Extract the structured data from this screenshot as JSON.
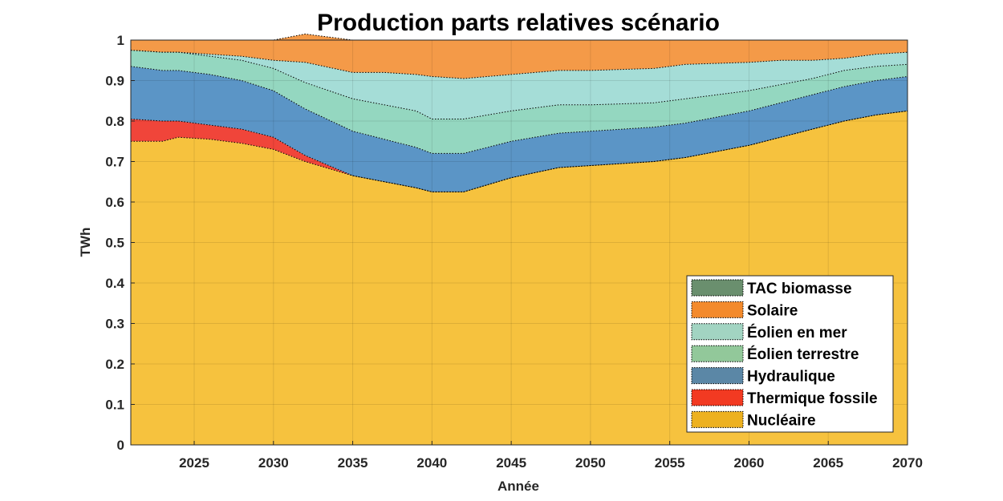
{
  "chart_data": {
    "type": "area",
    "stacked": true,
    "title": "Production parts relatives scénario",
    "xlabel": "Année",
    "ylabel": "TWh",
    "xlim": [
      2021,
      2070
    ],
    "ylim": [
      0,
      1
    ],
    "xticks": [
      2025,
      2030,
      2035,
      2040,
      2045,
      2050,
      2055,
      2060,
      2065,
      2070
    ],
    "yticks": [
      0,
      0.1,
      0.2,
      0.3,
      0.4,
      0.5,
      0.6,
      0.7,
      0.8,
      0.9,
      1
    ],
    "ytick_labels": [
      "0",
      "0.1",
      "0.2",
      "0.3",
      "0.4",
      "0.5",
      "0.6",
      "0.7",
      "0.8",
      "0.9",
      "1"
    ],
    "grid": true,
    "legend_position": "bottom-right",
    "x": [
      2021,
      2023,
      2024,
      2026,
      2028,
      2030,
      2032,
      2035,
      2037,
      2039,
      2040,
      2042,
      2045,
      2048,
      2050,
      2054,
      2056,
      2060,
      2062,
      2064,
      2066,
      2068,
      2070
    ],
    "series": [
      {
        "name": "Nucléaire",
        "color": "#f6c23e",
        "legend_color": "#edb120",
        "values": [
          0.75,
          0.75,
          0.76,
          0.755,
          0.745,
          0.73,
          0.7,
          0.665,
          0.65,
          0.635,
          0.625,
          0.625,
          0.66,
          0.685,
          0.69,
          0.7,
          0.71,
          0.74,
          0.76,
          0.78,
          0.8,
          0.815,
          0.825
        ]
      },
      {
        "name": "Thermique fossile",
        "color": "#f0453a",
        "legend_color": "#f23a22",
        "values": [
          0.055,
          0.05,
          0.04,
          0.035,
          0.035,
          0.03,
          0.015,
          0.0,
          0.0,
          0.0,
          0.0,
          0.0,
          0.0,
          0.0,
          0.0,
          0.0,
          0.0,
          0.0,
          0.0,
          0.0,
          0.0,
          0.0,
          0.0
        ]
      },
      {
        "name": "Hydraulique",
        "color": "#5b95c6",
        "legend_color": "#5b87a6",
        "values": [
          0.13,
          0.125,
          0.125,
          0.125,
          0.12,
          0.115,
          0.115,
          0.11,
          0.105,
          0.1,
          0.095,
          0.095,
          0.09,
          0.085,
          0.085,
          0.085,
          0.085,
          0.085,
          0.085,
          0.085,
          0.085,
          0.085,
          0.085
        ]
      },
      {
        "name": "Éolien terrestre",
        "color": "#94d7c0",
        "legend_color": "#92c89a",
        "values": [
          0.04,
          0.045,
          0.045,
          0.045,
          0.05,
          0.055,
          0.065,
          0.08,
          0.085,
          0.09,
          0.085,
          0.085,
          0.075,
          0.07,
          0.065,
          0.06,
          0.06,
          0.05,
          0.045,
          0.04,
          0.04,
          0.035,
          0.03
        ]
      },
      {
        "name": "Éolien en mer",
        "color": "#a5ddd7",
        "legend_color": "#a2d4c2",
        "values": [
          0.0,
          0.0,
          0.0,
          0.005,
          0.01,
          0.02,
          0.05,
          0.065,
          0.08,
          0.09,
          0.105,
          0.1,
          0.09,
          0.085,
          0.085,
          0.085,
          0.085,
          0.07,
          0.06,
          0.045,
          0.03,
          0.03,
          0.03
        ]
      },
      {
        "name": "Solaire",
        "color": "#f49a48",
        "legend_color": "#f38a2c",
        "values": [
          0.025,
          0.03,
          0.03,
          0.035,
          0.04,
          0.05,
          0.07,
          0.08,
          0.08,
          0.085,
          0.09,
          0.095,
          0.085,
          0.075,
          0.075,
          0.07,
          0.06,
          0.055,
          0.05,
          0.05,
          0.045,
          0.035,
          0.03
        ]
      },
      {
        "name": "TAC biomasse",
        "color": "#6a8f6e",
        "legend_color": "#6a8f6e",
        "values": [
          0.0,
          0.0,
          0.0,
          0.0,
          0.0,
          0.0,
          0.0,
          0.0,
          0.0,
          0.0,
          0.0,
          0.0,
          0.0,
          0.0,
          0.0,
          0.0,
          0.0,
          0.0,
          0.0,
          0.0,
          0.0,
          0.0,
          0.0
        ]
      }
    ],
    "legend_order": [
      "TAC biomasse",
      "Solaire",
      "Éolien en mer",
      "Éolien terrestre",
      "Hydraulique",
      "Thermique fossile",
      "Nucléaire"
    ]
  }
}
